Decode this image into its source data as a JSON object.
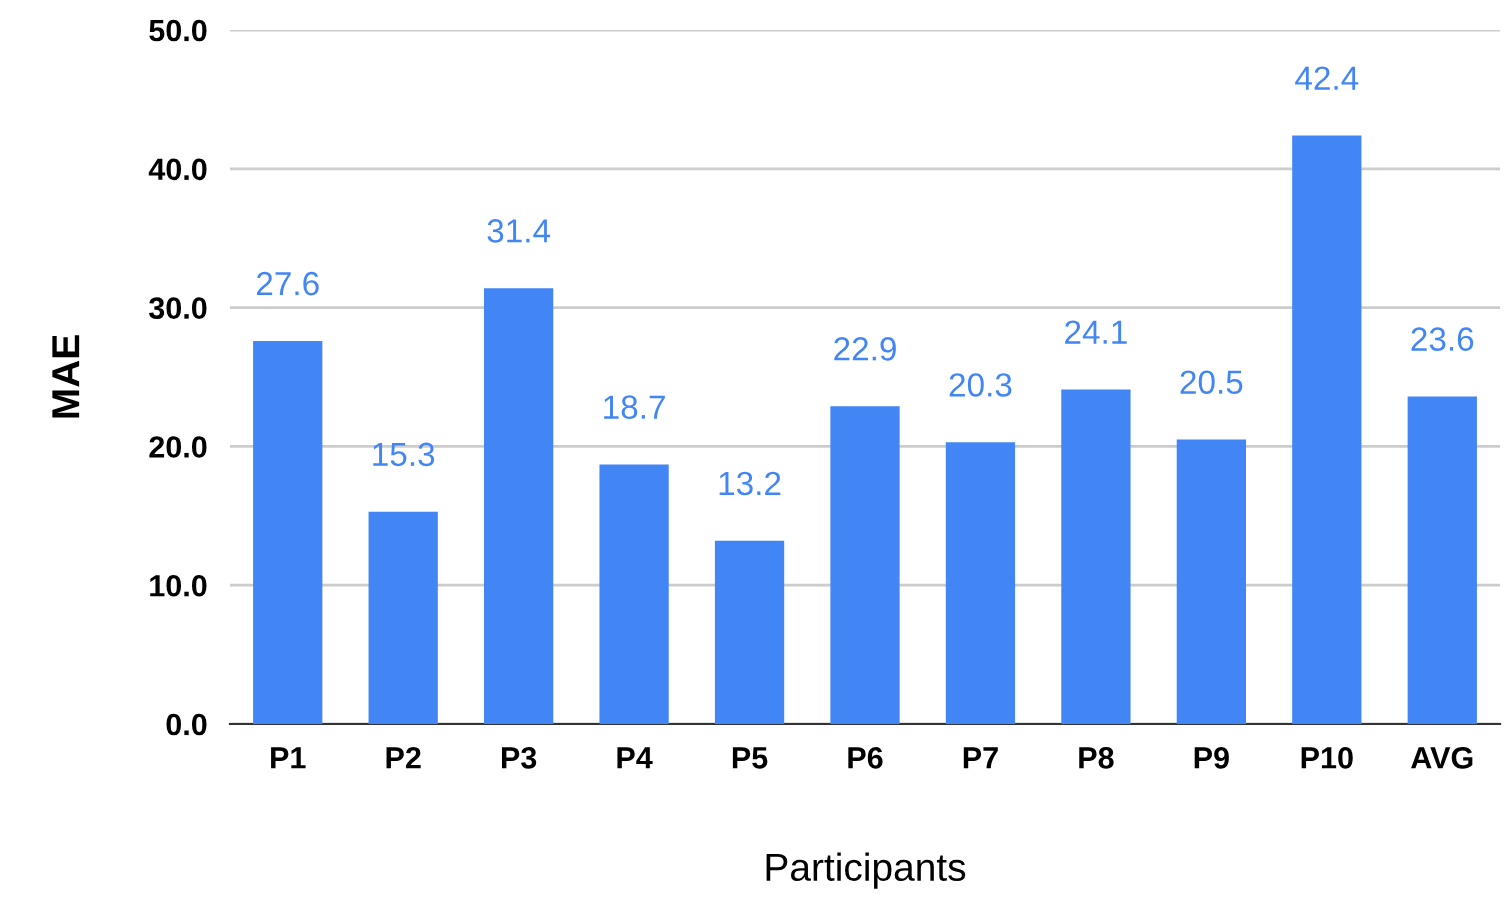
{
  "chart_data": {
    "type": "bar",
    "xlabel": "Participants",
    "ylabel": "MAE",
    "categories": [
      "P1",
      "P2",
      "P3",
      "P4",
      "P5",
      "P6",
      "P7",
      "P8",
      "P9",
      "P10",
      "AVG"
    ],
    "series": [
      {
        "color": "#4285f4",
        "values": [
          27.6,
          15.3,
          31.4,
          18.7,
          13.2,
          22.9,
          20.3,
          24.1,
          20.5,
          42.4,
          23.6
        ]
      }
    ],
    "ylim": [
      0,
      50
    ],
    "yticks": [
      {
        "value": 0,
        "label": "0.0"
      },
      {
        "value": 10,
        "label": "10.0"
      },
      {
        "value": 20,
        "label": "20.0"
      },
      {
        "value": 30,
        "label": "30.0"
      },
      {
        "value": 40,
        "label": "40.0"
      },
      {
        "value": 50,
        "label": "50.0"
      }
    ],
    "grid": "y",
    "data_labels": true,
    "legend": false
  }
}
